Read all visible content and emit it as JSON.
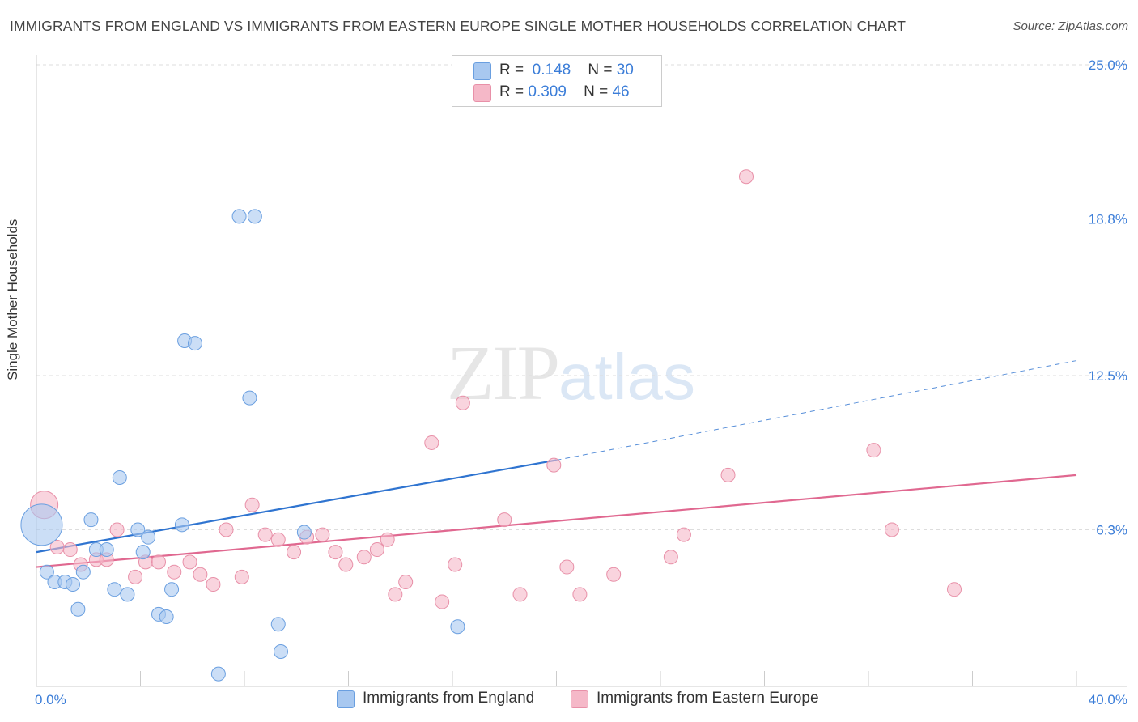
{
  "header": {
    "title": "IMMIGRANTS FROM ENGLAND VS IMMIGRANTS FROM EASTERN EUROPE SINGLE MOTHER HOUSEHOLDS CORRELATION CHART",
    "source": "Source: ZipAtlas.com"
  },
  "watermark": {
    "zip": "ZIP",
    "atlas": "atlas"
  },
  "legend": {
    "r_label": "R =",
    "n_label": "N =",
    "rows": [
      {
        "r": "0.148",
        "n": "30",
        "color": "#a8c8f0"
      },
      {
        "r": "0.309",
        "n": "46",
        "color": "#f5b8c8"
      }
    ]
  },
  "chart_data": {
    "type": "scatter",
    "title": "IMMIGRANTS FROM ENGLAND VS IMMIGRANTS FROM EASTERN EUROPE SINGLE MOTHER HOUSEHOLDS CORRELATION CHART",
    "xlabel": "",
    "ylabel": "Single Mother Households",
    "xlim": [
      0,
      40
    ],
    "ylim": [
      0,
      25
    ],
    "x_tick_labels": [
      "0.0%",
      "40.0%"
    ],
    "y_ticks": [
      6.3,
      12.5,
      18.8,
      25.0
    ],
    "y_tick_labels": [
      "6.3%",
      "12.5%",
      "18.8%",
      "25.0%"
    ],
    "grid": true,
    "legend_position": "top-center",
    "series": [
      {
        "name": "Immigrants from England",
        "color": "#a8c8f0",
        "stroke": "#6a9fe0",
        "line_color": "#2f74d0",
        "r": 0.148,
        "n": 30,
        "trend": {
          "x": [
            0,
            20
          ],
          "y": [
            5.4,
            9.1
          ],
          "dashed_to": [
            40,
            13.1
          ]
        },
        "points": [
          [
            0.2,
            6.5,
            3
          ],
          [
            0.4,
            4.6,
            1
          ],
          [
            0.7,
            4.2,
            1
          ],
          [
            1.1,
            4.2,
            1
          ],
          [
            1.4,
            4.1,
            1
          ],
          [
            1.6,
            3.1,
            1
          ],
          [
            1.8,
            4.6,
            1
          ],
          [
            2.1,
            6.7,
            1
          ],
          [
            2.3,
            5.5,
            1
          ],
          [
            2.7,
            5.5,
            1
          ],
          [
            3.0,
            3.9,
            1
          ],
          [
            3.2,
            8.4,
            1
          ],
          [
            3.5,
            3.7,
            1
          ],
          [
            3.9,
            6.3,
            1
          ],
          [
            4.1,
            5.4,
            1
          ],
          [
            4.3,
            6.0,
            1
          ],
          [
            4.7,
            2.9,
            1
          ],
          [
            5.0,
            2.8,
            1
          ],
          [
            5.2,
            3.9,
            1
          ],
          [
            5.6,
            6.5,
            1
          ],
          [
            5.7,
            13.9,
            1
          ],
          [
            6.1,
            13.8,
            1
          ],
          [
            7.0,
            0.5,
            1
          ],
          [
            7.8,
            18.9,
            1
          ],
          [
            8.2,
            11.6,
            1
          ],
          [
            8.4,
            18.9,
            1
          ],
          [
            9.3,
            2.5,
            1
          ],
          [
            9.4,
            1.4,
            1
          ],
          [
            10.3,
            6.2,
            1
          ],
          [
            16.2,
            2.4,
            1
          ]
        ]
      },
      {
        "name": "Immigrants from Eastern Europe",
        "color": "#f5b8c8",
        "stroke": "#e890a8",
        "line_color": "#e06890",
        "r": 0.309,
        "n": 46,
        "trend": {
          "x": [
            0,
            40
          ],
          "y": [
            4.8,
            8.5
          ]
        },
        "points": [
          [
            0.3,
            7.3,
            2
          ],
          [
            0.8,
            5.6,
            1
          ],
          [
            1.3,
            5.5,
            1
          ],
          [
            1.7,
            4.9,
            1
          ],
          [
            2.3,
            5.1,
            1
          ],
          [
            2.7,
            5.1,
            1
          ],
          [
            3.1,
            6.3,
            1
          ],
          [
            3.8,
            4.4,
            1
          ],
          [
            4.2,
            5.0,
            1
          ],
          [
            4.7,
            5.0,
            1
          ],
          [
            5.3,
            4.6,
            1
          ],
          [
            5.9,
            5.0,
            1
          ],
          [
            6.3,
            4.5,
            1
          ],
          [
            6.8,
            4.1,
            1
          ],
          [
            7.3,
            6.3,
            1
          ],
          [
            7.9,
            4.4,
            1
          ],
          [
            8.3,
            7.3,
            1
          ],
          [
            8.8,
            6.1,
            1
          ],
          [
            9.3,
            5.9,
            1
          ],
          [
            9.9,
            5.4,
            1
          ],
          [
            10.4,
            6.0,
            1
          ],
          [
            11.0,
            6.1,
            1
          ],
          [
            11.5,
            5.4,
            1
          ],
          [
            11.9,
            4.9,
            1
          ],
          [
            12.6,
            5.2,
            1
          ],
          [
            13.1,
            5.5,
            1
          ],
          [
            13.5,
            5.9,
            1
          ],
          [
            13.8,
            3.7,
            1
          ],
          [
            14.2,
            4.2,
            1
          ],
          [
            15.2,
            9.8,
            1
          ],
          [
            15.6,
            3.4,
            1
          ],
          [
            16.1,
            4.9,
            1
          ],
          [
            16.4,
            11.4,
            1
          ],
          [
            18.0,
            6.7,
            1
          ],
          [
            18.6,
            3.7,
            1
          ],
          [
            19.9,
            8.9,
            1
          ],
          [
            20.4,
            4.8,
            1
          ],
          [
            20.9,
            3.7,
            1
          ],
          [
            22.2,
            4.5,
            1
          ],
          [
            24.4,
            5.2,
            1
          ],
          [
            24.9,
            6.1,
            1
          ],
          [
            26.6,
            8.5,
            1
          ],
          [
            27.3,
            20.5,
            1
          ],
          [
            32.2,
            9.5,
            1
          ],
          [
            32.9,
            6.3,
            1
          ],
          [
            35.3,
            3.9,
            1
          ]
        ]
      }
    ]
  }
}
